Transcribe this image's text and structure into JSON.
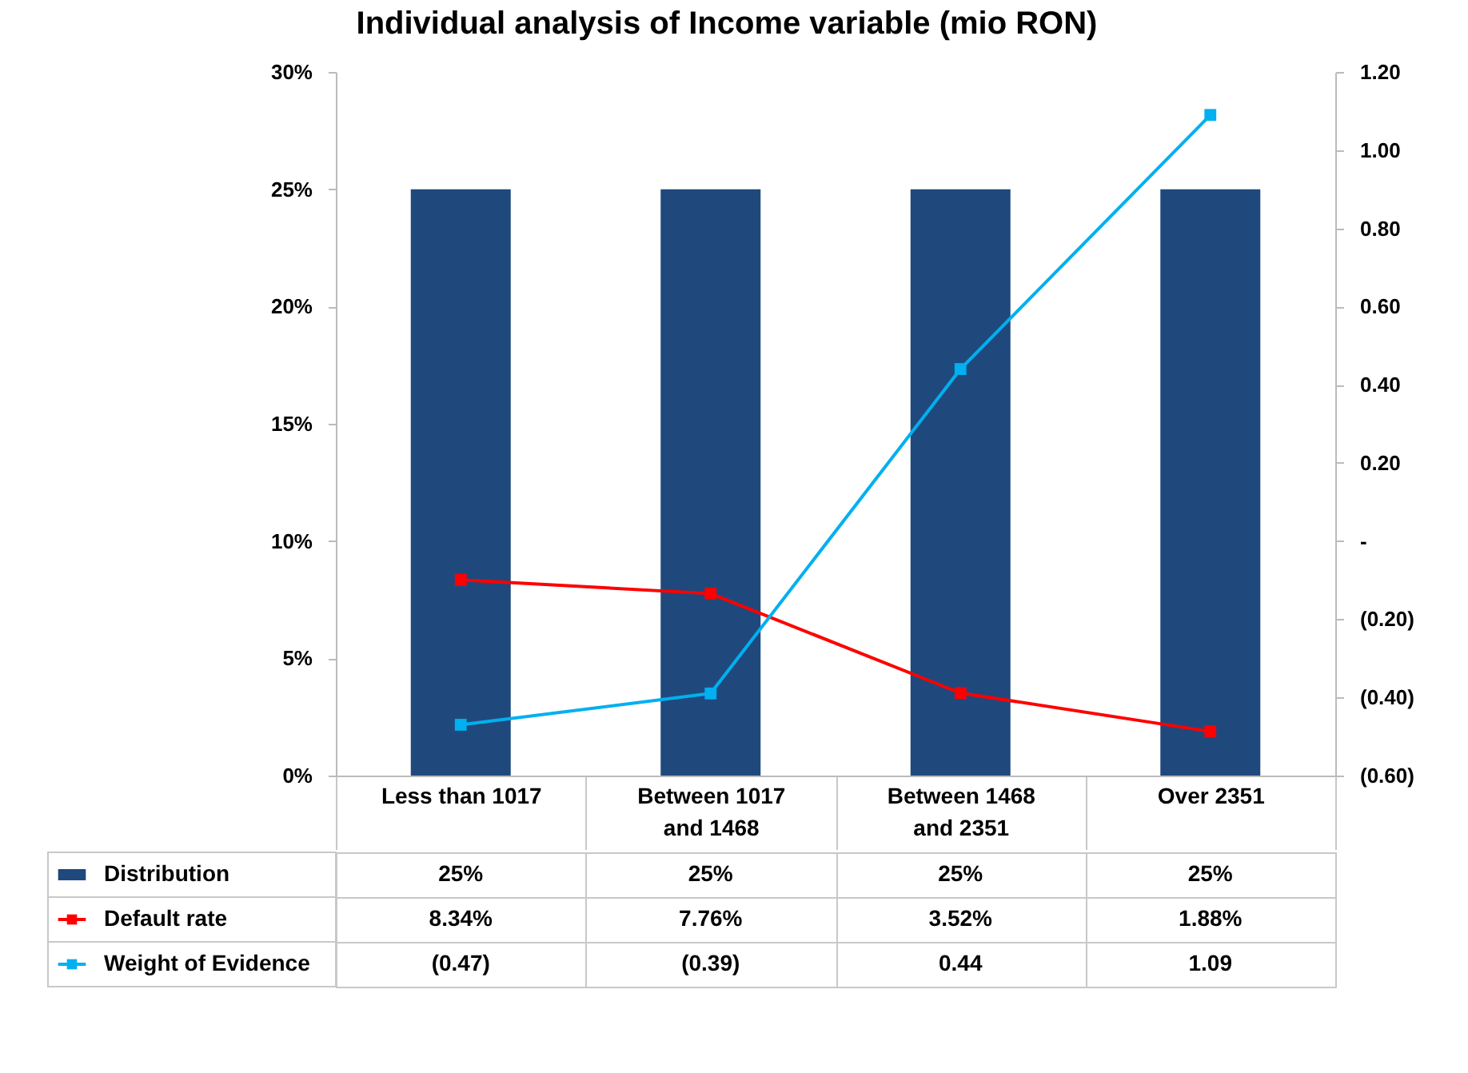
{
  "chart_data": {
    "type": "bar",
    "title": "Individual analysis of Income variable (mio RON)",
    "categories": [
      "Less than 1017",
      "Between 1017 and 1468",
      "Between 1468 and 2351",
      "Over 2351"
    ],
    "series": [
      {
        "name": "Distribution",
        "color": "#1f497d",
        "values": [
          25,
          25,
          25,
          25
        ],
        "value_labels": [
          "25%",
          "25%",
          "25%",
          "25%"
        ]
      },
      {
        "name": "Default rate",
        "type": "line",
        "color": "#ff0000",
        "values": [
          8.34,
          7.76,
          3.52,
          1.88
        ],
        "value_labels": [
          "8.34%",
          "7.76%",
          "3.52%",
          "1.88%"
        ]
      },
      {
        "name": "Weight of Evidence",
        "type": "line",
        "axis": "y2",
        "color": "#00b0f0",
        "values": [
          -0.47,
          -0.39,
          0.44,
          1.09
        ],
        "value_labels": [
          "(0.47)",
          "(0.39)",
          "0.44",
          "1.09"
        ]
      }
    ],
    "ylim": [
      0,
      30
    ],
    "yticks": [
      {
        "value": 0,
        "label": "0%"
      },
      {
        "value": 5,
        "label": "5%"
      },
      {
        "value": 10,
        "label": "10%"
      },
      {
        "value": 15,
        "label": "15%"
      },
      {
        "value": 20,
        "label": "20%"
      },
      {
        "value": 25,
        "label": "25%"
      },
      {
        "value": 30,
        "label": "30%"
      }
    ],
    "y2lim": [
      -0.6,
      1.2
    ],
    "y2ticks": [
      {
        "value": -0.6,
        "label": "(0.60)"
      },
      {
        "value": -0.4,
        "label": "(0.40)"
      },
      {
        "value": -0.2,
        "label": "(0.20)"
      },
      {
        "value": 0,
        "label": "-"
      },
      {
        "value": 0.2,
        "label": "0.20"
      },
      {
        "value": 0.4,
        "label": "0.40"
      },
      {
        "value": 0.6,
        "label": "0.60"
      },
      {
        "value": 0.8,
        "label": "0.80"
      },
      {
        "value": 1.0,
        "label": "1.00"
      },
      {
        "value": 1.2,
        "label": "1.20"
      }
    ],
    "marker": "square",
    "line_style": "solid",
    "legend": "bottom"
  }
}
